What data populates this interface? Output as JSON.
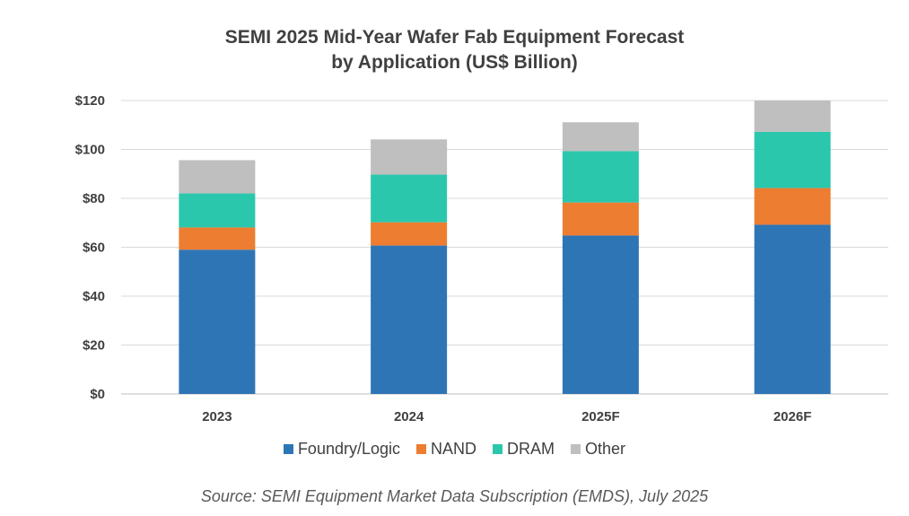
{
  "chart_data": {
    "type": "bar",
    "stacked": true,
    "title": "SEMI 2025 Mid-Year Wafer Fab Equipment Forecast",
    "subtitle": "by Application (US$ Billion)",
    "categories": [
      "2023",
      "2024",
      "2025F",
      "2026F"
    ],
    "series": [
      {
        "name": "Foundry/Logic",
        "color": "#2E75B6",
        "values": [
          59,
          60.7,
          64.8,
          69.2
        ]
      },
      {
        "name": "NAND",
        "color": "#ED7D31",
        "values": [
          9.1,
          9.5,
          13.5,
          15
        ]
      },
      {
        "name": "DRAM",
        "color": "#2BC7AD",
        "values": [
          13.9,
          19.5,
          21,
          23
        ]
      },
      {
        "name": "Other",
        "color": "#BFBFBF",
        "values": [
          13.6,
          14.4,
          11.8,
          12.8
        ]
      }
    ],
    "y_ticks": [
      "$0",
      "$20",
      "$40",
      "$60",
      "$80",
      "$100",
      "$120"
    ],
    "ylim": [
      0,
      120
    ],
    "grid": true,
    "legend_position": "bottom",
    "source": "Source: SEMI Equipment Market Data Subscription (EMDS), July 2025"
  }
}
